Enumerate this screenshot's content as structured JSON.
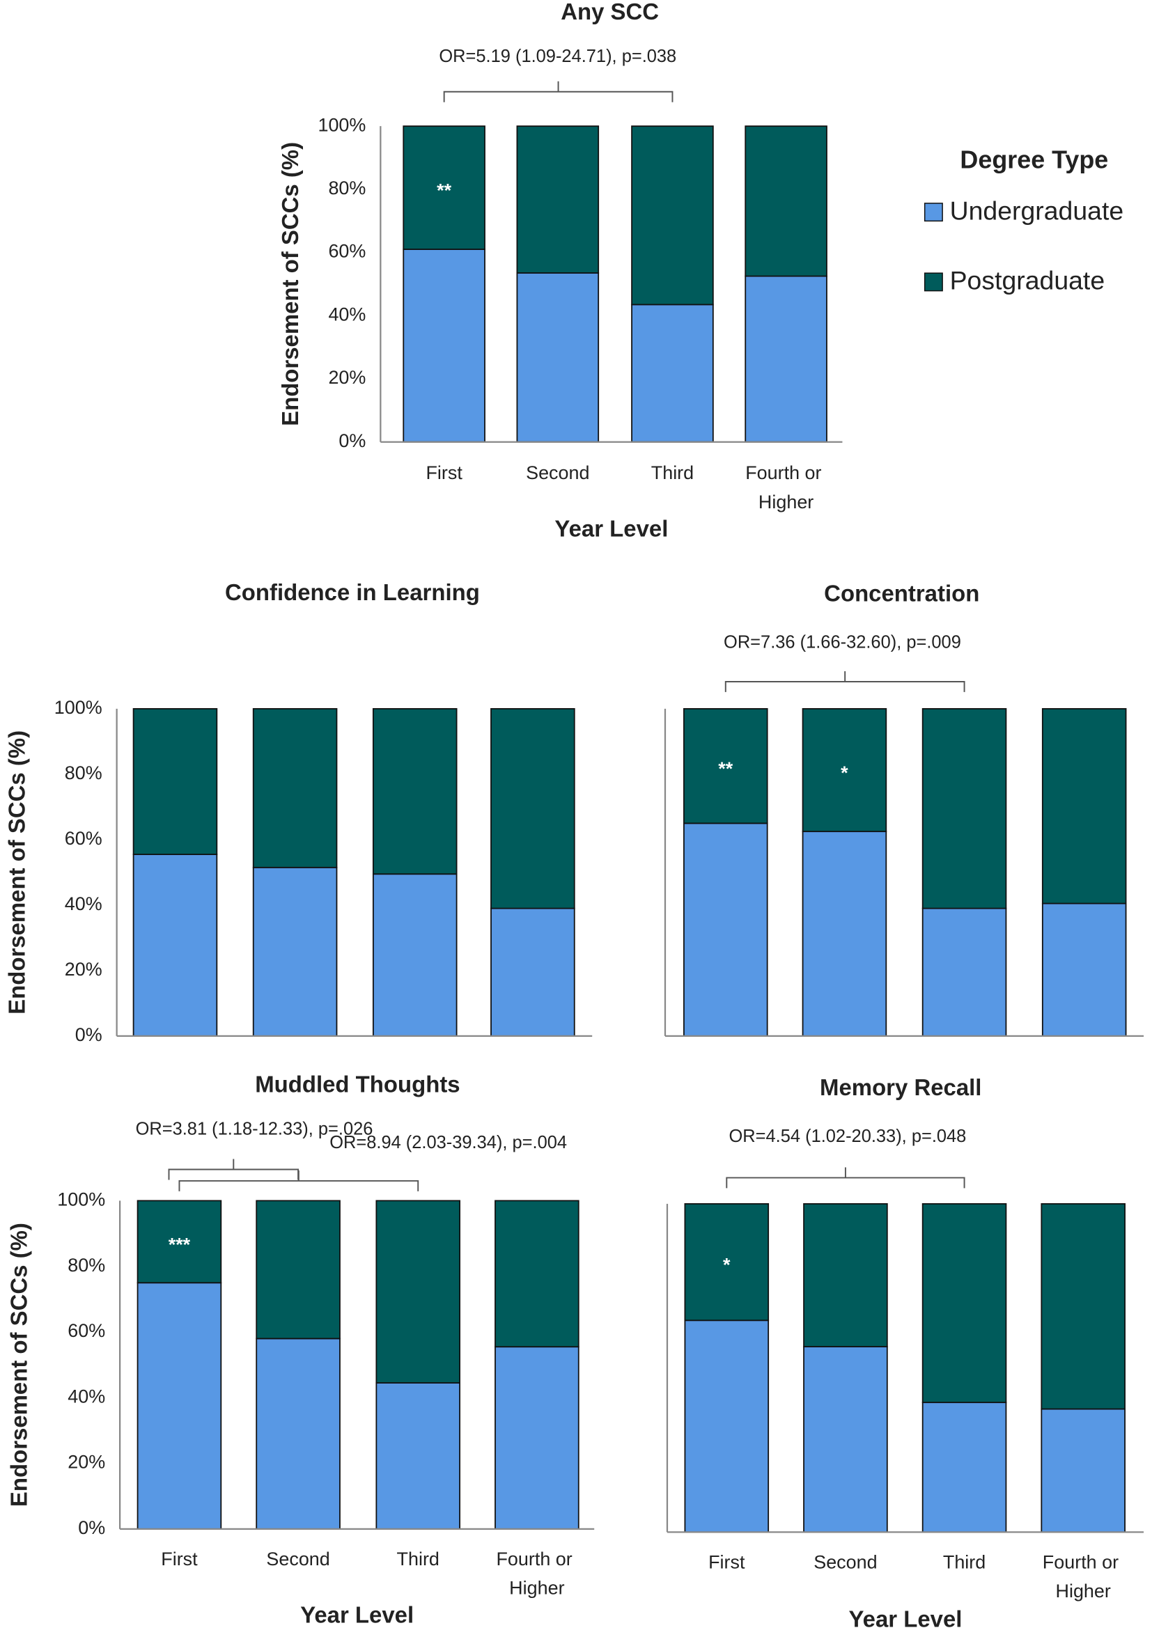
{
  "chart_data": [
    {
      "type": "bar",
      "stacked": true,
      "title": "Any SCC",
      "y_label": "Endorsement of SCCs (%)",
      "x_label": "Year Level",
      "legend_title": "Degree Type",
      "categories": [
        "First",
        "Second",
        "Third",
        "Fourth or Higher"
      ],
      "series": [
        {
          "name": "Undergraduate",
          "color": "#5898e4",
          "values": [
            61,
            53.5,
            43.5,
            52.5
          ]
        },
        {
          "name": "Postgraduate",
          "color": "#005b5b",
          "values": [
            39,
            46.5,
            56.5,
            47.5
          ]
        }
      ],
      "ylim": [
        0,
        100
      ],
      "yticks": [
        {
          "value": 0,
          "label": "0%"
        },
        {
          "value": 20,
          "label": "20%"
        },
        {
          "value": 40,
          "label": "40%"
        },
        {
          "value": 60,
          "label": "60%"
        },
        {
          "value": 80,
          "label": "80%"
        },
        {
          "value": 100,
          "label": "100%"
        }
      ],
      "stars": [
        {
          "text": "**",
          "category": 0
        }
      ],
      "brackets": [
        {
          "text": "OR=5.19 (1.09-24.71), p=.038",
          "from": 0,
          "to": 2
        }
      ]
    },
    {
      "type": "bar",
      "stacked": true,
      "title": "Confidence in Learning",
      "y_label": "Endorsement of SCCs (%)",
      "categories": [
        null,
        null,
        null,
        null
      ],
      "series": [
        {
          "name": "Undergraduate",
          "color": "#5898e4",
          "values": [
            55.5,
            51.5,
            49.5,
            39
          ]
        },
        {
          "name": "Postgraduate",
          "color": "#005b5b",
          "values": [
            44.5,
            48.5,
            50.5,
            61
          ]
        }
      ],
      "ylim": [
        0,
        100
      ],
      "yticks": [
        {
          "value": 0,
          "label": "0%"
        },
        {
          "value": 20,
          "label": "20%"
        },
        {
          "value": 40,
          "label": "40%"
        },
        {
          "value": 60,
          "label": "60%"
        },
        {
          "value": 80,
          "label": "80%"
        },
        {
          "value": 100,
          "label": "100%"
        }
      ]
    },
    {
      "type": "bar",
      "stacked": true,
      "title": "Concentration",
      "categories": [
        null,
        null,
        null,
        null
      ],
      "series": [
        {
          "name": "Undergraduate",
          "color": "#5898e4",
          "values": [
            65,
            62.5,
            39,
            40.5
          ]
        },
        {
          "name": "Postgraduate",
          "color": "#005b5b",
          "values": [
            35,
            37.5,
            61,
            59.5
          ]
        }
      ],
      "ylim": [
        0,
        100
      ],
      "stars": [
        {
          "text": "**",
          "category": 0
        },
        {
          "text": "*",
          "category": 1
        }
      ],
      "brackets": [
        {
          "text": "OR=7.36 (1.66-32.60), p=.009",
          "from": 0,
          "to": 2
        }
      ]
    },
    {
      "type": "bar",
      "stacked": true,
      "title": "Muddled Thoughts",
      "y_label": "Endorsement of SCCs (%)",
      "x_label": "Year Level",
      "categories": [
        "First",
        "Second",
        "Third",
        "Fourth or Higher"
      ],
      "series": [
        {
          "name": "Undergraduate",
          "color": "#5898e4",
          "values": [
            75,
            58,
            44.5,
            55.5
          ]
        },
        {
          "name": "Postgraduate",
          "color": "#005b5b",
          "values": [
            25,
            42,
            55.5,
            44.5
          ]
        }
      ],
      "ylim": [
        0,
        100
      ],
      "yticks": [
        {
          "value": 0,
          "label": "0%"
        },
        {
          "value": 20,
          "label": "20%"
        },
        {
          "value": 40,
          "label": "40%"
        },
        {
          "value": 60,
          "label": "60%"
        },
        {
          "value": 80,
          "label": "80%"
        },
        {
          "value": 100,
          "label": "100%"
        }
      ],
      "stars": [
        {
          "text": "***",
          "category": 0
        }
      ],
      "brackets": [
        {
          "text": "OR=3.81 (1.18-12.33), p=.026",
          "from": 0,
          "to": 1
        },
        {
          "text": "OR=8.94 (2.03-39.34), p=.004",
          "from": 0,
          "to": 2
        }
      ]
    },
    {
      "type": "bar",
      "stacked": true,
      "title": "Memory Recall",
      "x_label": "Year Level",
      "categories": [
        "First",
        "Second",
        "Third",
        "Fourth or Higher"
      ],
      "series": [
        {
          "name": "Undergraduate",
          "color": "#5898e4",
          "values": [
            64.5,
            56.5,
            39.5,
            37.5
          ]
        },
        {
          "name": "Postgraduate",
          "color": "#005b5b",
          "values": [
            35.5,
            43.5,
            60.5,
            62.5
          ]
        }
      ],
      "ylim": [
        0,
        100
      ],
      "stars": [
        {
          "text": "*",
          "category": 0
        }
      ],
      "brackets": [
        {
          "text": "OR=4.54 (1.02-20.33), p=.048",
          "from": 0,
          "to": 2
        }
      ]
    }
  ]
}
